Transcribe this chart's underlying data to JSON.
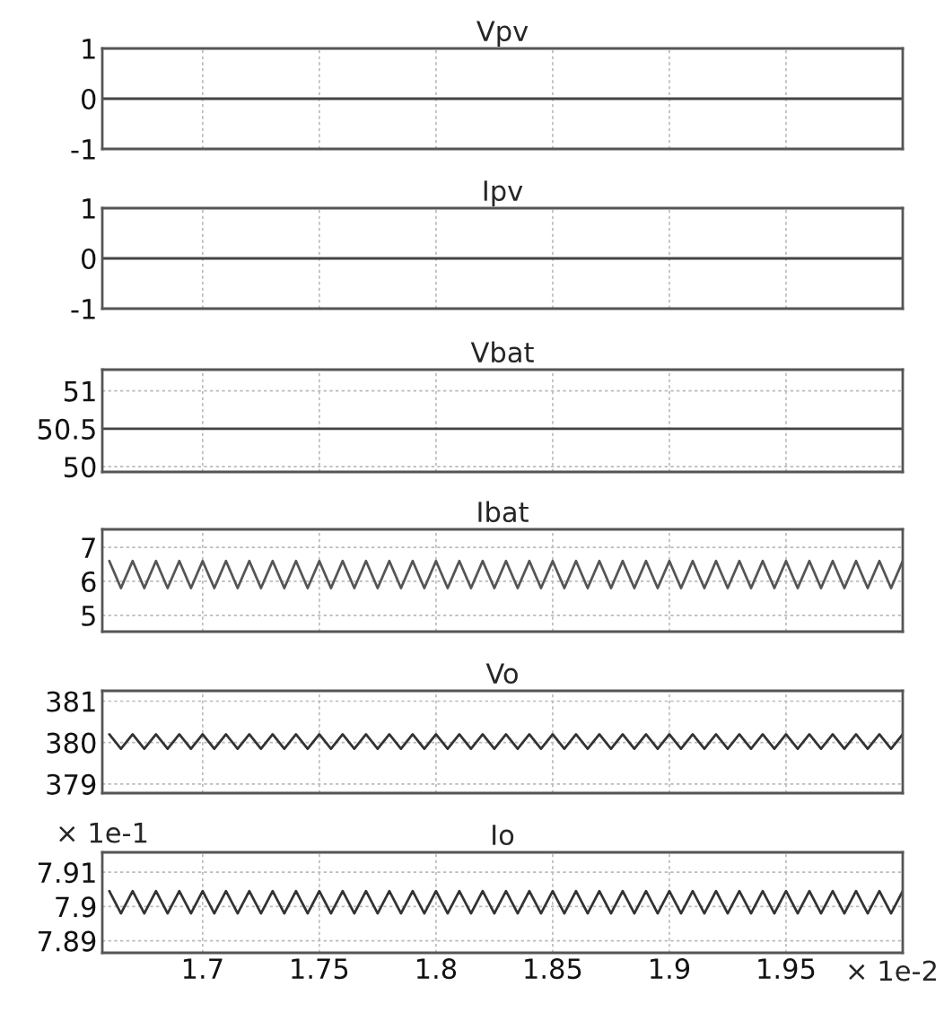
{
  "chart_data": [
    {
      "type": "line",
      "title": "Vpv",
      "x": [
        1.657,
        2.0
      ],
      "values": [
        0,
        0
      ],
      "color": "#444444",
      "xlim": [
        1.657,
        2.0
      ],
      "xticks": [
        1.7,
        1.75,
        1.8,
        1.85,
        1.9,
        1.95
      ],
      "ylim": [
        -1,
        1
      ],
      "yticks": [
        -1,
        0,
        1
      ],
      "grid": true,
      "tick_labels": "y"
    },
    {
      "type": "line",
      "title": "Ipv",
      "x": [
        1.657,
        2.0
      ],
      "values": [
        0,
        0
      ],
      "color": "#444444",
      "xlim": [
        1.657,
        2.0
      ],
      "xticks": [
        1.7,
        1.75,
        1.8,
        1.85,
        1.9,
        1.95
      ],
      "ylim": [
        -1,
        1
      ],
      "yticks": [
        -1,
        0,
        1
      ],
      "grid": true,
      "tick_labels": "y"
    },
    {
      "type": "line",
      "title": "Vbat",
      "x": [
        1.657,
        2.0
      ],
      "values": [
        50.5,
        50.5
      ],
      "color": "#444444",
      "xlim": [
        1.657,
        2.0
      ],
      "xticks": [
        1.7,
        1.75,
        1.8,
        1.85,
        1.9,
        1.95
      ],
      "ylim": [
        49.93,
        51.28
      ],
      "yticks": [
        50,
        50.5,
        51
      ],
      "grid": true,
      "tick_labels": "y"
    },
    {
      "type": "line",
      "title": "Ibat",
      "x": [
        1.66,
        1.665,
        1.67,
        1.675,
        1.68,
        1.685,
        1.69,
        1.695,
        1.7,
        1.705,
        1.71,
        1.715,
        1.72,
        1.725,
        1.73,
        1.735,
        1.74,
        1.745,
        1.75,
        1.755,
        1.76,
        1.765,
        1.77,
        1.775,
        1.78,
        1.785,
        1.79,
        1.795,
        1.8,
        1.805,
        1.81,
        1.815,
        1.82,
        1.825,
        1.83,
        1.835,
        1.84,
        1.845,
        1.85,
        1.855,
        1.86,
        1.865,
        1.87,
        1.875,
        1.88,
        1.885,
        1.89,
        1.895,
        1.9,
        1.905,
        1.91,
        1.915,
        1.92,
        1.925,
        1.93,
        1.935,
        1.94,
        1.945,
        1.95,
        1.955,
        1.96,
        1.965,
        1.97,
        1.975,
        1.98,
        1.985,
        1.99,
        1.995,
        2.0
      ],
      "values": [
        6.6,
        5.8,
        6.6,
        5.8,
        6.6,
        5.8,
        6.6,
        5.8,
        6.6,
        5.8,
        6.6,
        5.8,
        6.6,
        5.8,
        6.6,
        5.8,
        6.6,
        5.8,
        6.6,
        5.8,
        6.6,
        5.8,
        6.6,
        5.8,
        6.6,
        5.8,
        6.6,
        5.8,
        6.6,
        5.8,
        6.6,
        5.8,
        6.6,
        5.8,
        6.6,
        5.8,
        6.6,
        5.8,
        6.6,
        5.8,
        6.6,
        5.8,
        6.6,
        5.8,
        6.6,
        5.8,
        6.6,
        5.8,
        6.6,
        5.8,
        6.6,
        5.8,
        6.6,
        5.8,
        6.6,
        5.8,
        6.6,
        5.8,
        6.6,
        5.8,
        6.6,
        5.8,
        6.6,
        5.8,
        6.6,
        5.8,
        6.6,
        5.8,
        6.6
      ],
      "color": "#555555",
      "xlim": [
        1.657,
        2.0
      ],
      "xticks": [
        1.7,
        1.75,
        1.8,
        1.85,
        1.9,
        1.95
      ],
      "ylim": [
        4.52,
        7.53
      ],
      "yticks": [
        5,
        6,
        7
      ],
      "grid": true,
      "tick_labels": "y"
    },
    {
      "type": "line",
      "title": "Vo",
      "x": [
        1.66,
        1.665,
        1.67,
        1.675,
        1.68,
        1.685,
        1.69,
        1.695,
        1.7,
        1.705,
        1.71,
        1.715,
        1.72,
        1.725,
        1.73,
        1.735,
        1.74,
        1.745,
        1.75,
        1.755,
        1.76,
        1.765,
        1.77,
        1.775,
        1.78,
        1.785,
        1.79,
        1.795,
        1.8,
        1.805,
        1.81,
        1.815,
        1.82,
        1.825,
        1.83,
        1.835,
        1.84,
        1.845,
        1.85,
        1.855,
        1.86,
        1.865,
        1.87,
        1.875,
        1.88,
        1.885,
        1.89,
        1.895,
        1.9,
        1.905,
        1.91,
        1.915,
        1.92,
        1.925,
        1.93,
        1.935,
        1.94,
        1.945,
        1.95,
        1.955,
        1.96,
        1.965,
        1.97,
        1.975,
        1.98,
        1.985,
        1.99,
        1.995,
        2.0
      ],
      "values": [
        380.2,
        379.85,
        380.2,
        379.85,
        380.2,
        379.85,
        380.2,
        379.85,
        380.2,
        379.85,
        380.2,
        379.85,
        380.2,
        379.85,
        380.2,
        379.85,
        380.2,
        379.85,
        380.2,
        379.85,
        380.2,
        379.85,
        380.2,
        379.85,
        380.2,
        379.85,
        380.2,
        379.85,
        380.2,
        379.85,
        380.2,
        379.85,
        380.2,
        379.85,
        380.2,
        379.85,
        380.2,
        379.85,
        380.2,
        379.85,
        380.2,
        379.85,
        380.2,
        379.85,
        380.2,
        379.85,
        380.2,
        379.85,
        380.2,
        379.85,
        380.2,
        379.85,
        380.2,
        379.85,
        380.2,
        379.85,
        380.2,
        379.85,
        380.2,
        379.85,
        380.2,
        379.85,
        380.2,
        379.85,
        380.2,
        379.85,
        380.2,
        379.85,
        380.2
      ],
      "color": "#333333",
      "xlim": [
        1.657,
        2.0
      ],
      "xticks": [
        1.7,
        1.75,
        1.8,
        1.85,
        1.9,
        1.95
      ],
      "ylim": [
        378.78,
        381.25
      ],
      "yticks": [
        379,
        380,
        381
      ],
      "grid": true,
      "tick_labels": "y"
    },
    {
      "type": "line",
      "title": "Io",
      "x": [
        1.66,
        1.665,
        1.67,
        1.675,
        1.68,
        1.685,
        1.69,
        1.695,
        1.7,
        1.705,
        1.71,
        1.715,
        1.72,
        1.725,
        1.73,
        1.735,
        1.74,
        1.745,
        1.75,
        1.755,
        1.76,
        1.765,
        1.77,
        1.775,
        1.78,
        1.785,
        1.79,
        1.795,
        1.8,
        1.805,
        1.81,
        1.815,
        1.82,
        1.825,
        1.83,
        1.835,
        1.84,
        1.845,
        1.85,
        1.855,
        1.86,
        1.865,
        1.87,
        1.875,
        1.88,
        1.885,
        1.89,
        1.895,
        1.9,
        1.905,
        1.91,
        1.915,
        1.92,
        1.925,
        1.93,
        1.935,
        1.94,
        1.945,
        1.95,
        1.955,
        1.96,
        1.965,
        1.97,
        1.975,
        1.98,
        1.985,
        1.99,
        1.995,
        2.0
      ],
      "values": [
        7.9045,
        7.898,
        7.9045,
        7.898,
        7.9045,
        7.898,
        7.9045,
        7.898,
        7.9045,
        7.898,
        7.9045,
        7.898,
        7.9045,
        7.898,
        7.9045,
        7.898,
        7.9045,
        7.898,
        7.9045,
        7.898,
        7.9045,
        7.898,
        7.9045,
        7.898,
        7.9045,
        7.898,
        7.9045,
        7.898,
        7.9045,
        7.898,
        7.9045,
        7.898,
        7.9045,
        7.898,
        7.9045,
        7.898,
        7.9045,
        7.898,
        7.9045,
        7.898,
        7.9045,
        7.898,
        7.9045,
        7.898,
        7.9045,
        7.898,
        7.9045,
        7.898,
        7.9045,
        7.898,
        7.9045,
        7.898,
        7.9045,
        7.898,
        7.9045,
        7.898,
        7.9045,
        7.898,
        7.9045,
        7.898,
        7.9045,
        7.898,
        7.9045,
        7.898,
        7.9045,
        7.898,
        7.9045,
        7.898,
        7.9045
      ],
      "color": "#333333",
      "xlim": [
        1.657,
        2.0
      ],
      "xticks": [
        1.7,
        1.75,
        1.8,
        1.85,
        1.9,
        1.95
      ],
      "ylim": [
        7.8865,
        7.9158
      ],
      "yticks": [
        7.89,
        7.9,
        7.91
      ],
      "grid": true,
      "annotations": [
        "× 1e-1",
        "× 1e-2"
      ]
    }
  ]
}
